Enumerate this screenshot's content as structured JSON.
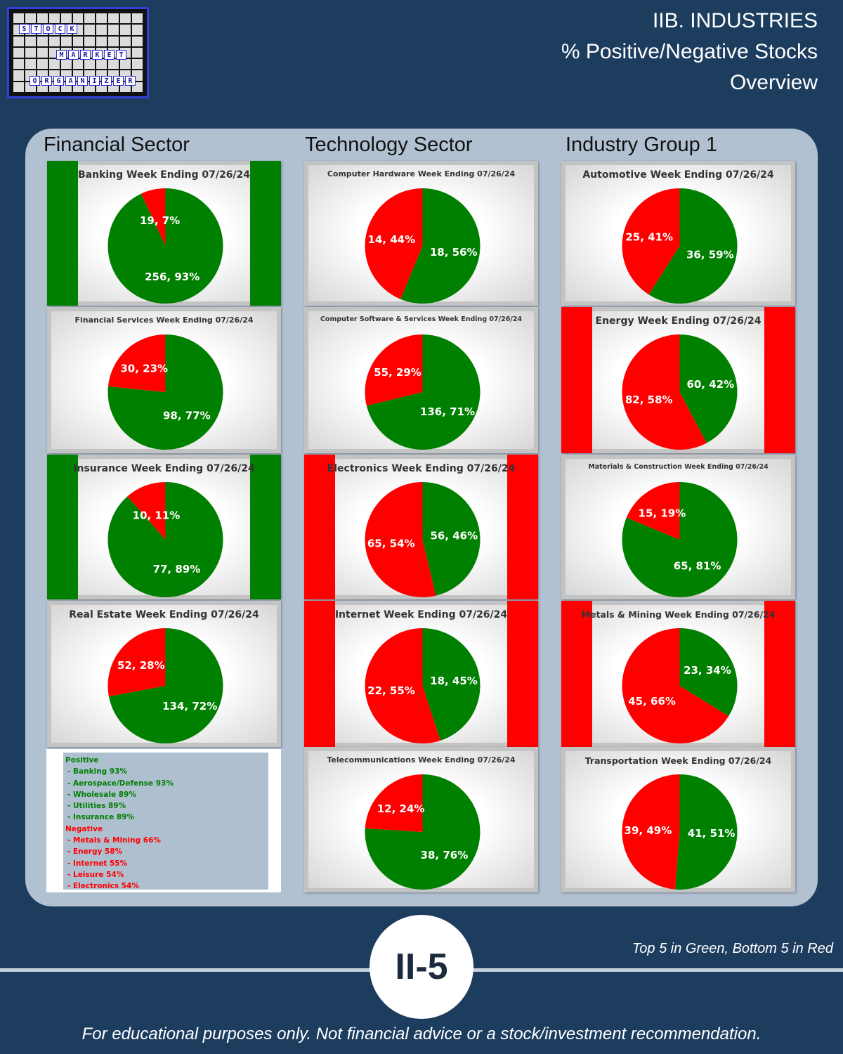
{
  "logo": {
    "words": [
      "STOCK",
      "MARKET",
      "ORGANIZER"
    ]
  },
  "header": {
    "lines": [
      "IIB. INDUSTRIES",
      "% Positive/Negative Stocks",
      "Overview"
    ]
  },
  "columns": [
    "Financial Sector",
    "Technology Sector",
    "Industry Group 1"
  ],
  "colors": {
    "positive": "#008000",
    "negative": "#ff0000",
    "background": "#1d3d5f",
    "panel": "#b1c1d2"
  },
  "chart_data": [
    {
      "type": "pie",
      "title": "Banking Week Ending 07/26/24",
      "slices": [
        {
          "name": "Positive",
          "value": 256,
          "label": "256, 93%"
        },
        {
          "name": "Negative",
          "value": 19,
          "label": "19, 7%"
        }
      ],
      "highlight": "top"
    },
    {
      "type": "pie",
      "title": "Financial Services Week Ending 07/26/24",
      "slices": [
        {
          "name": "Positive",
          "value": 98,
          "label": "98, 77%"
        },
        {
          "name": "Negative",
          "value": 30,
          "label": "30, 23%"
        }
      ],
      "highlight": ""
    },
    {
      "type": "pie",
      "title": "Insurance Week Ending 07/26/24",
      "slices": [
        {
          "name": "Positive",
          "value": 77,
          "label": "77, 89%"
        },
        {
          "name": "Negative",
          "value": 10,
          "label": "10, 11%"
        }
      ],
      "highlight": "top"
    },
    {
      "type": "pie",
      "title": "Real Estate Week Ending 07/26/24",
      "slices": [
        {
          "name": "Positive",
          "value": 134,
          "label": "134, 72%"
        },
        {
          "name": "Negative",
          "value": 52,
          "label": "52, 28%"
        }
      ],
      "highlight": ""
    },
    {
      "type": "pie",
      "title": "Computer Hardware Week Ending 07/26/24",
      "slices": [
        {
          "name": "Positive",
          "value": 18,
          "label": "18, 56%"
        },
        {
          "name": "Negative",
          "value": 14,
          "label": "14, 44%"
        }
      ],
      "highlight": ""
    },
    {
      "type": "pie",
      "title": "Computer Software & Services Week Ending 07/26/24",
      "slices": [
        {
          "name": "Positive",
          "value": 136,
          "label": "136, 71%"
        },
        {
          "name": "Negative",
          "value": 55,
          "label": "55, 29%"
        }
      ],
      "highlight": ""
    },
    {
      "type": "pie",
      "title": "Electronics Week Ending 07/26/24",
      "slices": [
        {
          "name": "Positive",
          "value": 56,
          "label": "56, 46%"
        },
        {
          "name": "Negative",
          "value": 65,
          "label": "65, 54%"
        }
      ],
      "highlight": "bottom"
    },
    {
      "type": "pie",
      "title": "Internet Week Ending 07/26/24",
      "slices": [
        {
          "name": "Positive",
          "value": 18,
          "label": "18, 45%"
        },
        {
          "name": "Negative",
          "value": 22,
          "label": "22, 55%"
        }
      ],
      "highlight": "bottom"
    },
    {
      "type": "pie",
      "title": "Telecommunications Week Ending 07/26/24",
      "slices": [
        {
          "name": "Positive",
          "value": 38,
          "label": "38, 76%"
        },
        {
          "name": "Negative",
          "value": 12,
          "label": "12, 24%"
        }
      ],
      "highlight": ""
    },
    {
      "type": "pie",
      "title": "Automotive Week Ending 07/26/24",
      "slices": [
        {
          "name": "Positive",
          "value": 36,
          "label": "36, 59%"
        },
        {
          "name": "Negative",
          "value": 25,
          "label": "25, 41%"
        }
      ],
      "highlight": ""
    },
    {
      "type": "pie",
      "title": "Energy Week Ending 07/26/24",
      "slices": [
        {
          "name": "Positive",
          "value": 60,
          "label": "60, 42%"
        },
        {
          "name": "Negative",
          "value": 82,
          "label": "82, 58%"
        }
      ],
      "highlight": "bottom"
    },
    {
      "type": "pie",
      "title": "Materials & Construction Week Ending 07/26/24",
      "slices": [
        {
          "name": "Positive",
          "value": 65,
          "label": "65, 81%"
        },
        {
          "name": "Negative",
          "value": 15,
          "label": "15, 19%"
        }
      ],
      "highlight": ""
    },
    {
      "type": "pie",
      "title": "Metals & Mining  Week Ending  07/26/24",
      "slices": [
        {
          "name": "Positive",
          "value": 23,
          "label": "23, 34%"
        },
        {
          "name": "Negative",
          "value": 45,
          "label": "45, 66%"
        }
      ],
      "highlight": "bottom"
    },
    {
      "type": "pie",
      "title": "Transportation  Week Ending 07/26/24",
      "slices": [
        {
          "name": "Positive",
          "value": 41,
          "label": "41, 51%"
        },
        {
          "name": "Negative",
          "value": 39,
          "label": "39, 49%"
        }
      ],
      "highlight": ""
    }
  ],
  "summary": {
    "positive_heading": "Positive",
    "positive": [
      " - Banking 93%",
      " - Aerospace/Defense 93%",
      " - Wholesale 89%",
      " - Utilities 89%",
      " - Insurance 89%"
    ],
    "negative_heading": "Negative",
    "negative": [
      " - Metals & Mining 66%",
      " - Energy 58%",
      " - Internet 55%",
      " - Leisure 54%",
      " - Electronics 54%"
    ]
  },
  "footer": {
    "note": "Top 5 in Green, Bottom 5 in Red",
    "page": "II-5",
    "disclaimer": "For educational purposes only. Not financial advice or a stock/investment recommendation."
  }
}
